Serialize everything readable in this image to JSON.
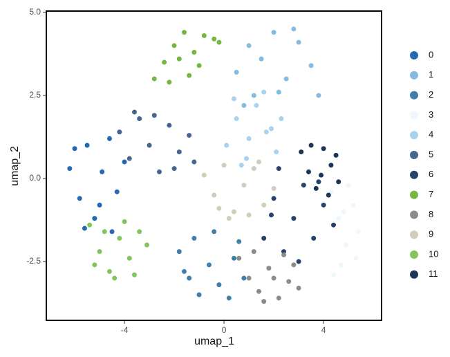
{
  "chart_data": {
    "type": "scatter",
    "x_label": "umap_1",
    "y_label": "umap_2",
    "xlim": [
      -7.14,
      6.33
    ],
    "ylim": [
      -4.27,
      5.04
    ],
    "xticks": [
      -4,
      0,
      4
    ],
    "yticks": [
      {
        "value": -2.5,
        "label": "-2.5"
      },
      {
        "value": 0,
        "label": "0.0"
      },
      {
        "value": 2.5,
        "label": "2.5"
      },
      {
        "value": 5,
        "label": "5.0"
      }
    ],
    "legend": "right",
    "series": [
      {
        "name": "0",
        "color": "#2369b3",
        "x": [
          -6.2,
          -5.8,
          -5.5,
          -5.2,
          -4.9,
          -4.6,
          -4.3,
          -4.0,
          -5.6,
          -5.0,
          -4.5,
          -6.0
        ],
        "y": [
          0.3,
          -0.6,
          1.0,
          -1.2,
          0.2,
          1.2,
          -0.4,
          0.5,
          -1.5,
          -0.8,
          -1.6,
          0.9
        ]
      },
      {
        "name": "1",
        "color": "#86bbe0",
        "x": [
          0.5,
          1.0,
          1.5,
          2.0,
          2.5,
          3.0,
          3.5,
          1.2,
          2.2,
          2.8,
          3.8,
          0.8
        ],
        "y": [
          3.2,
          4.0,
          3.6,
          4.4,
          3.0,
          4.1,
          3.4,
          2.5,
          2.6,
          4.5,
          2.5,
          2.2
        ]
      },
      {
        "name": "2",
        "color": "#417fa6",
        "x": [
          -1.8,
          -1.4,
          -1.0,
          -0.6,
          -0.2,
          0.4,
          0.8,
          -1.2,
          -0.4,
          0.2,
          -1.6,
          0.6
        ],
        "y": [
          -2.2,
          -3.0,
          -3.5,
          -2.6,
          -3.2,
          -2.4,
          -3.0,
          -1.8,
          -1.6,
          -3.6,
          -2.8,
          -1.9
        ]
      },
      {
        "name": "3",
        "color": "#eef7fd",
        "x": [
          4.3,
          4.6,
          4.9,
          5.2,
          5.4,
          4.7,
          5.0,
          4.4,
          5.3,
          4.8
        ],
        "y": [
          -0.4,
          -1.2,
          -2.0,
          -0.8,
          -1.6,
          -2.6,
          -0.2,
          -2.9,
          -2.4,
          -1.0
        ]
      },
      {
        "name": "4",
        "color": "#a9d2ee",
        "x": [
          0.1,
          0.5,
          0.9,
          1.3,
          1.7,
          2.1,
          0.4,
          1.0,
          1.6,
          2.3,
          0.7,
          1.9
        ],
        "y": [
          1.0,
          1.8,
          0.6,
          2.2,
          1.4,
          0.8,
          2.4,
          1.2,
          2.6,
          1.8,
          0.4,
          1.5
        ]
      },
      {
        "name": "5",
        "color": "#46668f",
        "x": [
          -4.2,
          -3.8,
          -3.4,
          -3.0,
          -2.6,
          -2.2,
          -1.8,
          -1.4,
          -3.6,
          -2.8,
          -2.0,
          -1.2
        ],
        "y": [
          1.4,
          0.6,
          1.8,
          1.0,
          0.2,
          1.6,
          0.8,
          1.3,
          2.0,
          1.9,
          0.3,
          0.5
        ]
      },
      {
        "name": "6",
        "color": "#26446b",
        "x": [
          1.6,
          2.0,
          2.4,
          2.8,
          3.2,
          3.6,
          4.0,
          4.4,
          2.2,
          3.0,
          3.8,
          1.9
        ],
        "y": [
          -1.8,
          -0.6,
          -2.2,
          -1.2,
          -0.2,
          -1.8,
          -0.8,
          -1.4,
          0.3,
          -2.5,
          -0.1,
          -1.1
        ]
      },
      {
        "name": "7",
        "color": "#76b743",
        "x": [
          -2.8,
          -2.4,
          -2.0,
          -1.6,
          -1.2,
          -0.8,
          -0.4,
          -1.4,
          -2.2,
          -1.0,
          -0.2,
          -1.8
        ],
        "y": [
          3.0,
          3.5,
          4.0,
          4.4,
          3.8,
          4.3,
          4.2,
          3.1,
          2.9,
          3.4,
          4.1,
          3.6
        ]
      },
      {
        "name": "8",
        "color": "#8a8c8c",
        "x": [
          0.6,
          1.0,
          1.4,
          1.8,
          2.2,
          2.6,
          3.0,
          1.2,
          2.0,
          2.8,
          1.6,
          2.4
        ],
        "y": [
          -2.4,
          -3.0,
          -3.4,
          -2.7,
          -3.6,
          -3.1,
          -3.3,
          -2.2,
          -3.0,
          -2.6,
          -3.7,
          -2.3
        ]
      },
      {
        "name": "9",
        "color": "#d3cbbc",
        "x": [
          -0.8,
          -0.4,
          0,
          0.4,
          0.8,
          1.2,
          1.6,
          2.0,
          0.2,
          1.0,
          -0.2,
          1.4
        ],
        "y": [
          0.1,
          -0.5,
          0.4,
          -1.0,
          -0.2,
          0.3,
          -0.8,
          -0.3,
          -1.2,
          -1.1,
          -0.9,
          0.5
        ]
      },
      {
        "name": "10",
        "color": "#85c45c",
        "x": [
          -5.4,
          -5.0,
          -4.6,
          -4.2,
          -3.8,
          -3.4,
          -4.8,
          -4.4,
          -3.6,
          -5.2,
          -4.0,
          -3.1
        ],
        "y": [
          -1.4,
          -2.2,
          -2.8,
          -1.8,
          -2.4,
          -1.6,
          -1.6,
          -3.0,
          -2.9,
          -2.6,
          -1.3,
          -2.0
        ]
      },
      {
        "name": "11",
        "color": "#1d3557",
        "x": [
          3.1,
          3.4,
          3.7,
          4.0,
          4.3,
          4.6,
          3.5,
          4.2,
          3.9,
          4.5
        ],
        "y": [
          0.8,
          0.2,
          -0.3,
          0.9,
          0.4,
          -0.1,
          1.0,
          -0.5,
          0.1,
          0.7
        ]
      }
    ]
  }
}
